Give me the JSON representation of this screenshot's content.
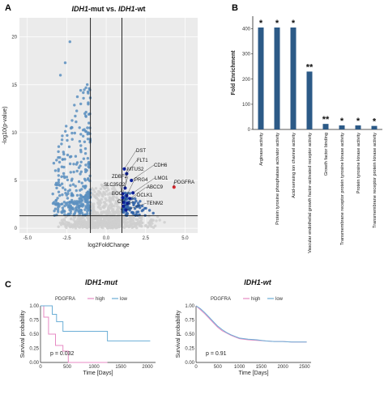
{
  "panels": {
    "a": "A",
    "b": "B",
    "c": "C"
  },
  "chart_data": [
    {
      "type": "scatter",
      "title_left": "IDH1",
      "title_mid": "-mut vs. ",
      "title_right": "IDH1",
      "title_end": "-wt",
      "xlabel": "log2FoldChange",
      "ylabel": "-log10(p-value)",
      "xlim": [
        -5.5,
        5.8
      ],
      "ylim": [
        -0.5,
        22
      ],
      "xticks": [
        -5.0,
        -2.5,
        0.0,
        2.5,
        5.0
      ],
      "xtick_labels": [
        "-5.0",
        "-2.5",
        "0.0",
        "2.5",
        "5.0"
      ],
      "yticks": [
        0,
        5,
        10,
        15,
        20
      ],
      "ytick_labels": [
        "0",
        "5",
        "10",
        "15",
        "20"
      ],
      "vlines": [
        -1,
        1
      ],
      "hline": 1.3,
      "grid": true,
      "colors": {
        "ns": "#cfcfcf",
        "down": "#5a8fc0",
        "up": "#2f63a8",
        "labeled": "#0a1fa0",
        "pdgfra": "#d9282f"
      },
      "highlight_points": [
        {
          "name": "DST",
          "x": 1.15,
          "y": 6.2
        },
        {
          "name": "FLT1",
          "x": 1.3,
          "y": 5.7
        },
        {
          "name": "CDH6",
          "x": 1.6,
          "y": 5.0
        },
        {
          "name": "MTUS2",
          "x": 1.2,
          "y": 4.2
        },
        {
          "name": "LMO1",
          "x": 1.7,
          "y": 3.7
        },
        {
          "name": "ZDBF2",
          "x": 1.05,
          "y": 3.6
        },
        {
          "name": "PRG4",
          "x": 1.3,
          "y": 3.4
        },
        {
          "name": "SLC35G2",
          "x": 1.05,
          "y": 3.2
        },
        {
          "name": "ABCC9",
          "x": 1.5,
          "y": 3.1
        },
        {
          "name": "BOC",
          "x": 1.1,
          "y": 2.7
        },
        {
          "name": "DCLK1",
          "x": 1.35,
          "y": 2.6
        },
        {
          "name": "C7",
          "x": 1.1,
          "y": 2.3
        },
        {
          "name": "TENM2",
          "x": 1.25,
          "y": 1.9
        },
        {
          "name": "PDGFRA",
          "x": 4.3,
          "y": 4.3
        }
      ]
    },
    {
      "type": "bar",
      "ylabel": "Fold Enrichment",
      "ylim": [
        0,
        450
      ],
      "yticks": [
        0,
        100,
        200,
        300,
        400
      ],
      "bar_color": "#2c5a87",
      "categories": [
        "Arginase activity",
        "Protein tyrosine phosphatase activator activity",
        "Acid-sensing ion channel activity",
        "Vascular endothelial growth factor-activated receptor activity",
        "Growth factor binding",
        "Transmembrane receptor protein tyrosine kinase activity",
        "Protein tyrosine kinase activity",
        "Transmembrane receptor protein kinase activity"
      ],
      "values": [
        405,
        405,
        405,
        230,
        22,
        16,
        16,
        14
      ],
      "significance": [
        "*",
        "*",
        "*",
        "**",
        "**",
        "*",
        "*",
        "*"
      ]
    },
    {
      "type": "line",
      "title": "IDH1",
      "title_suffix": "-mut",
      "legend_title": "PDGFRA",
      "legend": [
        "high",
        "low"
      ],
      "xlabel": "Time [Days]",
      "ylabel": "Survival probability",
      "xlim": [
        0,
        2150
      ],
      "ylim": [
        0,
        1
      ],
      "xticks": [
        0,
        500,
        1000,
        1500,
        2000
      ],
      "yticks": [
        0.0,
        0.25,
        0.5,
        0.75,
        1.0
      ],
      "ytick_labels": [
        "0.00",
        "0.25",
        "0.50",
        "0.75",
        "1.00"
      ],
      "pvalue": "p = 0.032",
      "series": [
        {
          "name": "high",
          "color": "#e78ac3",
          "x": [
            0,
            60,
            60,
            150,
            150,
            280,
            280,
            420,
            420,
            520,
            520,
            1250
          ],
          "y": [
            1.0,
            1.0,
            0.8,
            0.8,
            0.5,
            0.5,
            0.3,
            0.3,
            0.2,
            0.2,
            0.0,
            0.0
          ]
        },
        {
          "name": "low",
          "color": "#6baed6",
          "x": [
            0,
            220,
            220,
            300,
            300,
            420,
            420,
            520,
            520,
            1250,
            1250,
            2050
          ],
          "y": [
            1.0,
            1.0,
            0.85,
            0.85,
            0.72,
            0.72,
            0.55,
            0.55,
            0.55,
            0.55,
            0.38,
            0.38
          ]
        }
      ]
    },
    {
      "type": "line",
      "title": "IDH1",
      "title_suffix": "-wt",
      "legend_title": "PDGFRA",
      "legend": [
        "high",
        "low"
      ],
      "xlabel": "Time [Days]",
      "ylabel": "Survival probability",
      "xlim": [
        0,
        2650
      ],
      "ylim": [
        0,
        1
      ],
      "xticks": [
        0,
        500,
        1000,
        1500,
        2000,
        2500
      ],
      "yticks": [
        0.0,
        0.25,
        0.5,
        0.75,
        1.0
      ],
      "ytick_labels": [
        "0.00",
        "0.25",
        "0.50",
        "0.75",
        "1.00"
      ],
      "pvalue": "p = 0.91",
      "series": [
        {
          "name": "high",
          "color": "#e78ac3",
          "x": [
            0,
            100,
            200,
            300,
            400,
            500,
            600,
            700,
            800,
            900,
            1000,
            1200,
            1400,
            1600,
            1800,
            2000,
            2200,
            2400,
            2550
          ],
          "y": [
            1.0,
            0.93,
            0.86,
            0.78,
            0.7,
            0.62,
            0.56,
            0.52,
            0.48,
            0.45,
            0.42,
            0.4,
            0.39,
            0.38,
            0.37,
            0.37,
            0.36,
            0.36,
            0.36
          ]
        },
        {
          "name": "low",
          "color": "#6baed6",
          "x": [
            0,
            100,
            200,
            300,
            400,
            500,
            600,
            700,
            800,
            900,
            1000,
            1200,
            1400,
            1600,
            1800,
            2000,
            2200,
            2400,
            2550
          ],
          "y": [
            1.0,
            0.95,
            0.88,
            0.8,
            0.72,
            0.64,
            0.58,
            0.53,
            0.49,
            0.46,
            0.43,
            0.41,
            0.4,
            0.38,
            0.37,
            0.37,
            0.36,
            0.36,
            0.36
          ]
        }
      ]
    }
  ]
}
